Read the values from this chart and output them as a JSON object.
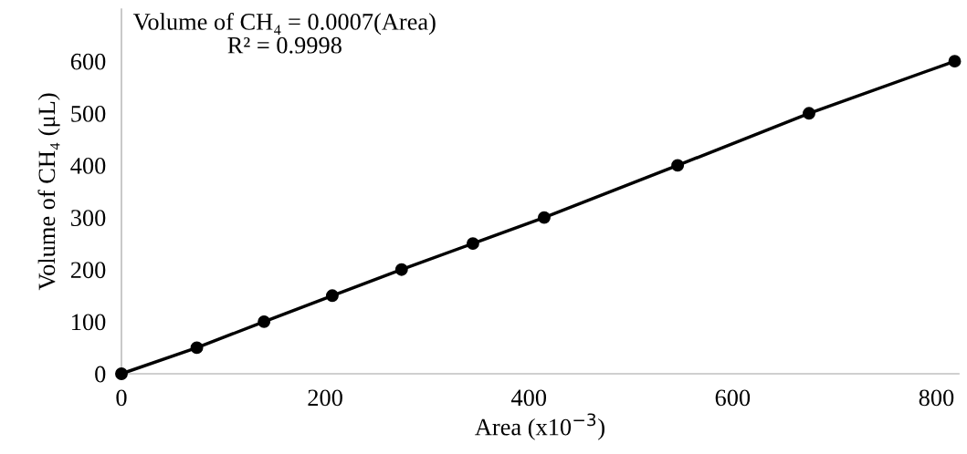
{
  "chart_data": {
    "type": "line",
    "xlabel": "Area (x10$^{−3}$)",
    "ylabel": "Volume of CH₄ (μL)",
    "annotations": [
      "Volume of CH₄ = 0.0007(Area)\nR² = 0.9998"
    ],
    "series": [
      {
        "color": "#000000",
        "x": [
          0,
          74,
          140,
          207,
          275,
          345,
          415,
          546,
          675,
          818
        ],
        "values": [
          0,
          50,
          100,
          150,
          200,
          250,
          300,
          400,
          500,
          600
        ]
      }
    ],
    "xlim": [
      0,
      822
    ],
    "xticks": [
      0,
      200,
      400,
      600,
      800
    ],
    "ylim": [
      0,
      700
    ],
    "yticks": [
      0,
      100,
      200,
      300,
      400,
      500,
      600
    ],
    "marker": "circle",
    "line_style": "solid",
    "grid": false,
    "legend": false
  }
}
